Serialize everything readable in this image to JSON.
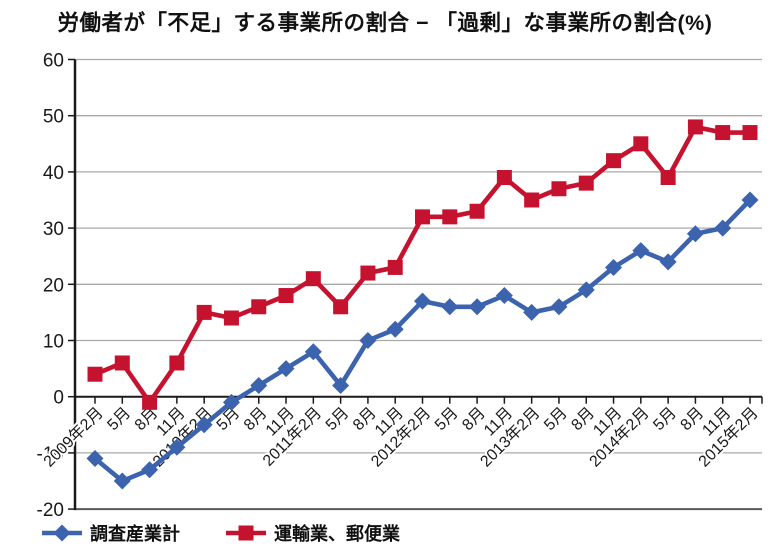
{
  "title": "労働者が「不足」する事業所の割合 − 「過剰」な事業所の割合(%)",
  "colors": {
    "series_total": "#3b63ae",
    "series_transport": "#c5122f",
    "grid": "#a8a8a8",
    "grid_bottom": "#595959",
    "axis": "#1a1a1a"
  },
  "chart_data": {
    "type": "line",
    "title": "労働者が「不足」する事業所の割合 − 「過剰」な事業所の割合(%)",
    "categories": [
      "2009年2月",
      "5月",
      "8月",
      "11月",
      "2010年2月",
      "5月",
      "8月",
      "11月",
      "2011年2月",
      "5月",
      "8月",
      "11月",
      "2012年2月",
      "5月",
      "8月",
      "11月",
      "2013年2月",
      "5月",
      "8月",
      "11月",
      "2014年2月",
      "5月",
      "8月",
      "11月",
      "2015年2月"
    ],
    "series": [
      {
        "name": "調査産業計",
        "marker": "diamond",
        "color": "#3b63ae",
        "values": [
          -11,
          -15,
          -13,
          -9,
          -5,
          -1,
          2,
          5,
          8,
          2,
          10,
          12,
          17,
          16,
          16,
          18,
          15,
          16,
          19,
          23,
          26,
          24,
          29,
          30,
          35
        ]
      },
      {
        "name": "運輸業、郵便業",
        "marker": "square",
        "color": "#c5122f",
        "values": [
          4,
          6,
          -1,
          6,
          15,
          14,
          16,
          18,
          21,
          16,
          22,
          23,
          32,
          32,
          33,
          39,
          35,
          37,
          38,
          42,
          45,
          39,
          48,
          47,
          47
        ]
      }
    ],
    "ylim": [
      -20,
      60
    ],
    "yticks": [
      60,
      50,
      40,
      30,
      20,
      10,
      0,
      -10,
      -20
    ],
    "grid": true,
    "xlabel": "",
    "ylabel": "",
    "legend_position": "bottom"
  },
  "legend": {
    "items": [
      {
        "label": "調査産業計"
      },
      {
        "label": "運輸業、郵便業"
      }
    ]
  }
}
